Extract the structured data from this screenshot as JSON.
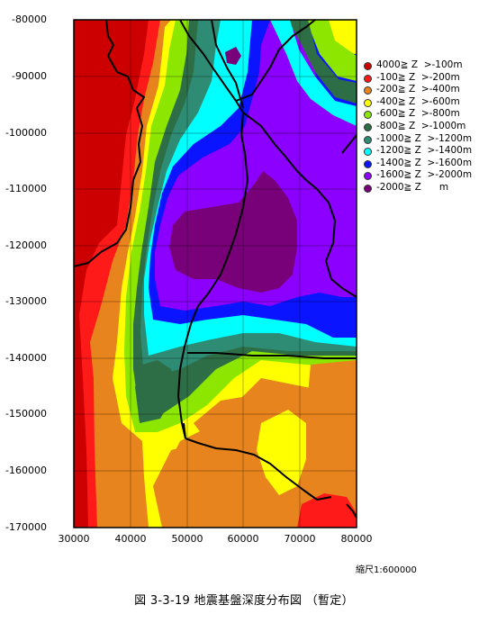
{
  "map": {
    "y_ticks": [
      "-80000",
      "-90000",
      "-100000",
      "-110000",
      "-120000",
      "-130000",
      "-140000",
      "-150000",
      "-160000",
      "-170000"
    ],
    "x_ticks": [
      "30000",
      "40000",
      "50000",
      "60000",
      "70000",
      "80000"
    ]
  },
  "legend": [
    {
      "label": "4000≧ Z  >-100m",
      "color": "#cc0000"
    },
    {
      "label": "-100≧ Z  >-200m",
      "color": "#ff1a1a"
    },
    {
      "label": "-200≧ Z  >-400m",
      "color": "#e8841e"
    },
    {
      "label": "-400≧ Z  >-600m",
      "color": "#ffff00"
    },
    {
      "label": "-600≧ Z  >-800m",
      "color": "#8ce600"
    },
    {
      "label": "-800≧ Z  >-1000m",
      "color": "#2e6e46"
    },
    {
      "label": "-1000≧ Z  >-1200m",
      "color": "#2e8c74"
    },
    {
      "label": "-1200≧ Z  >-1400m",
      "color": "#00ffff"
    },
    {
      "label": "-1400≧ Z  >-1600m",
      "color": "#0a14ff"
    },
    {
      "label": "-1600≧ Z  >-2000m",
      "color": "#8c00ff"
    },
    {
      "label": "-2000≧ Z      m",
      "color": "#780078"
    }
  ],
  "scale": "縮尺1:600000",
  "caption": "図 3-3-19   地震基盤深度分布図 （暫定）"
}
